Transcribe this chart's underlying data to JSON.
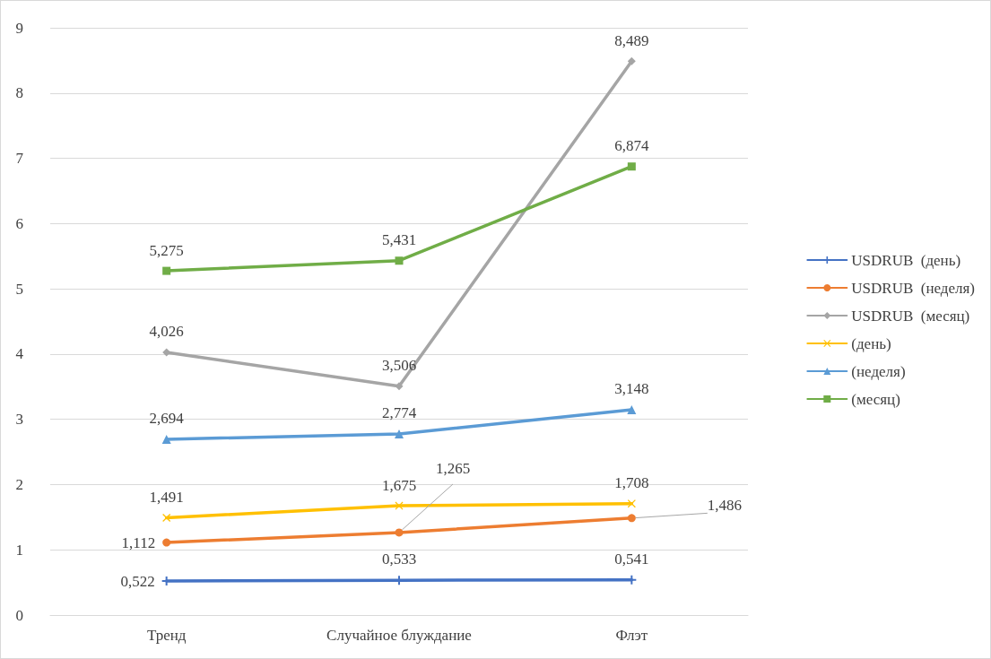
{
  "chart_data": {
    "type": "line",
    "categories": [
      "Тренд",
      "Случайное блуждание",
      "Флэт"
    ],
    "series": [
      {
        "name": "USDRUB  (день)",
        "color": "#4472c4",
        "marker": "cross",
        "values": [
          0.522,
          0.533,
          0.541
        ],
        "value_labels": [
          "0,522",
          "0,533",
          "0,541"
        ]
      },
      {
        "name": "USDRUB  (неделя)",
        "color": "#ed7d31",
        "marker": "circle",
        "values": [
          1.112,
          1.265,
          1.486
        ],
        "value_labels": [
          "1,112",
          "1,265",
          "1,486"
        ]
      },
      {
        "name": "USDRUB  (месяц)",
        "color": "#a5a5a5",
        "marker": "diamond",
        "values": [
          4.026,
          3.506,
          8.489
        ],
        "value_labels": [
          "4,026",
          "3,506",
          "8,489"
        ]
      },
      {
        "name": "(день)",
        "color": "#ffc000",
        "marker": "x",
        "values": [
          1.491,
          1.675,
          1.708
        ],
        "value_labels": [
          "1,491",
          "1,675",
          "1,708"
        ]
      },
      {
        "name": "(неделя)",
        "color": "#5b9bd5",
        "marker": "triangle",
        "values": [
          2.694,
          2.774,
          3.148
        ],
        "value_labels": [
          "2,694",
          "2,774",
          "3,148"
        ]
      },
      {
        "name": "(месяц)",
        "color": "#70ad47",
        "marker": "square",
        "values": [
          5.275,
          5.431,
          6.874
        ],
        "value_labels": [
          "5,275",
          "5,431",
          "6,874"
        ]
      }
    ],
    "ylim": [
      0,
      9
    ],
    "yticks": [
      0,
      1,
      2,
      3,
      4,
      5,
      6,
      7,
      8,
      9
    ],
    "grid": "y",
    "legend": "right",
    "line_style": "solid"
  }
}
